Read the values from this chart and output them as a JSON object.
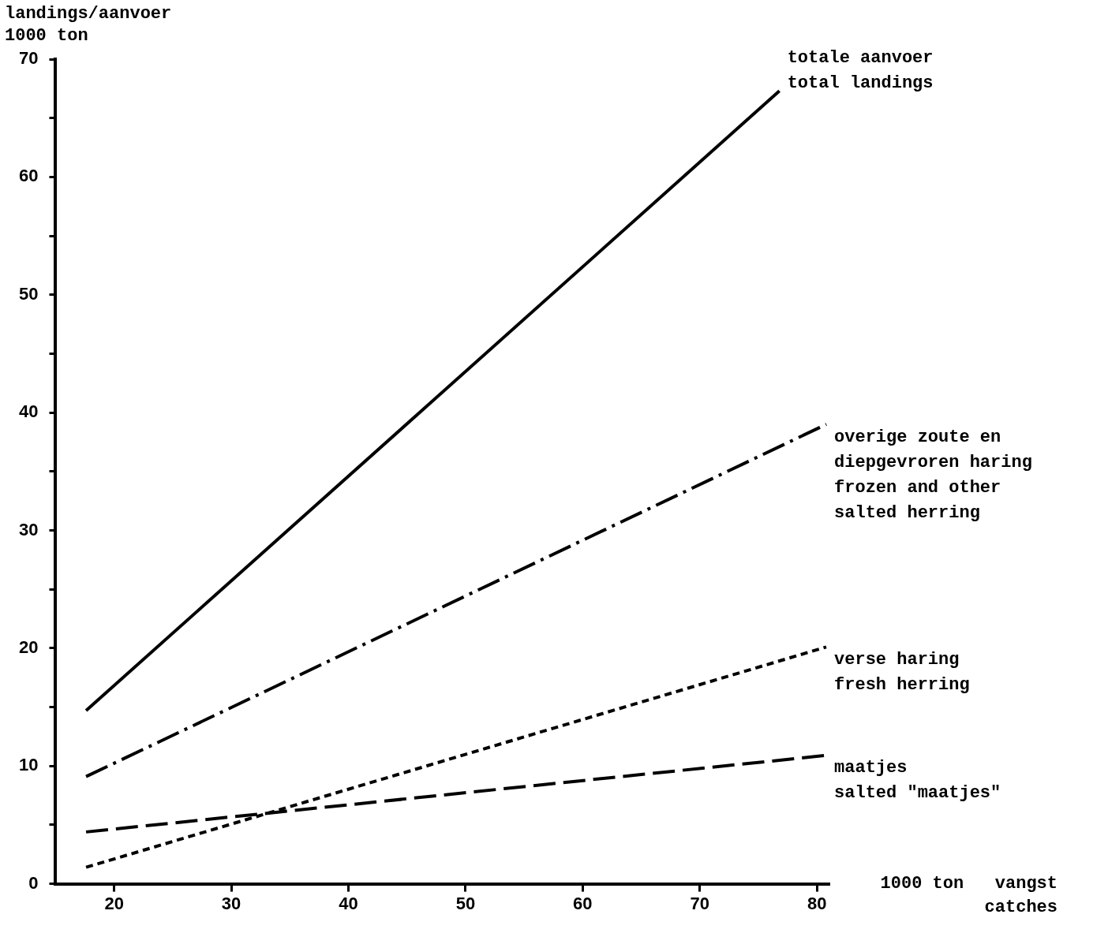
{
  "chart_data": {
    "type": "line",
    "ylabel": "landings/aanvoer\n1000 ton",
    "xlabel": "1000 ton   vangst\ncatches",
    "xlim": [
      15,
      81
    ],
    "xticks": [
      20,
      30,
      40,
      50,
      60,
      70,
      80
    ],
    "ylim": [
      0,
      70
    ],
    "yticks": [
      0,
      {
        "value": 5,
        "label": null
      },
      10,
      {
        "value": 15,
        "label": null
      },
      20,
      {
        "value": 25,
        "label": null
      },
      30,
      {
        "value": 35,
        "label": null
      },
      40,
      {
        "value": 45,
        "label": null
      },
      50,
      {
        "value": 55,
        "label": null
      },
      60,
      {
        "value": 65,
        "label": null
      },
      70
    ],
    "grid": false,
    "legend": false,
    "marker": "none",
    "series": [
      {
        "name": "totale aanvoer\ntotal landings",
        "color": "#000000",
        "line_style": "solid",
        "x": [
          17.6,
          76.8
        ],
        "values": [
          14.7,
          67.3
        ]
      },
      {
        "name": "overige zoute en\ndiepgevroren haring\nfrozen and other\nsalted herring",
        "color": "#000000",
        "line_style": "dashdot",
        "x": [
          17.6,
          80.8
        ],
        "values": [
          9.1,
          39
        ]
      },
      {
        "name": "verse haring\nfresh herring",
        "color": "#000000",
        "line_style": "dotted",
        "x": [
          17.6,
          80.8
        ],
        "values": [
          1.4,
          20.1
        ]
      },
      {
        "name": "maatjes\nsalted \"maatjes\"",
        "color": "#000000",
        "line_style": "dashed",
        "x": [
          17.6,
          80.8
        ],
        "values": [
          4.4,
          10.9
        ]
      }
    ]
  }
}
